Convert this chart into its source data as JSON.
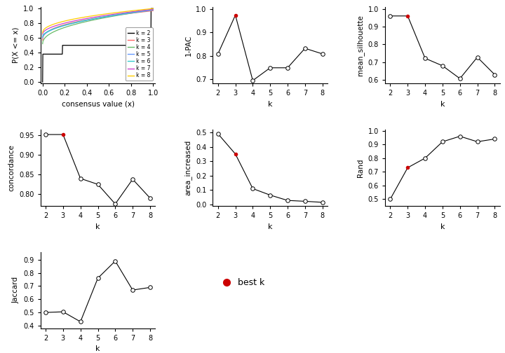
{
  "k_values": [
    2,
    3,
    4,
    5,
    6,
    7,
    8
  ],
  "oneminusPAC": [
    0.808,
    0.975,
    0.693,
    0.748,
    0.748,
    0.832,
    0.808
  ],
  "oneminusPAC_best": 3,
  "mean_silhouette": [
    0.96,
    0.96,
    0.722,
    0.68,
    0.608,
    0.728,
    0.63
  ],
  "mean_silhouette_best": 3,
  "concordance": [
    0.952,
    0.952,
    0.84,
    0.825,
    0.775,
    0.838,
    0.79
  ],
  "concordance_best": 3,
  "area_increased": [
    0.49,
    0.35,
    0.11,
    0.065,
    0.028,
    0.022,
    0.015
  ],
  "area_increased_best": 3,
  "Rand": [
    0.5,
    0.73,
    0.8,
    0.92,
    0.96,
    0.92,
    0.94
  ],
  "Rand_best": 3,
  "Jaccard": [
    0.5,
    0.505,
    0.43,
    0.76,
    0.89,
    0.67,
    0.69
  ],
  "Jaccard_best": null,
  "cdf_colors": [
    "black",
    "#FF6666",
    "#66BB66",
    "#6699FF",
    "#33CCCC",
    "#CC44CC",
    "#FFCC00"
  ],
  "cdf_k_labels": [
    "k = 2",
    "k = 3",
    "k = 4",
    "k = 5",
    "k = 6",
    "k = 7",
    "k = 8"
  ],
  "best_k_color": "#CC0000",
  "open_circle_color": "white",
  "line_color": "black",
  "bg_color": "#F0F0F0"
}
